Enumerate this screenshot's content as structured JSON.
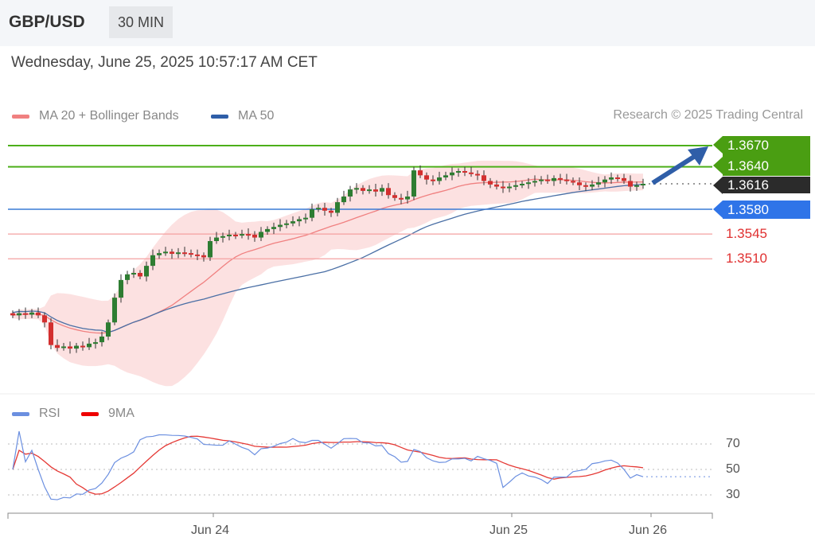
{
  "header": {
    "pair": "GBP/USD",
    "timeframe": "30 MIN"
  },
  "timestamp": "Wednesday, June 25, 2025 10:57:17 AM CET",
  "legend": {
    "ma20": "MA 20 + Bollinger Bands",
    "ma50": "MA 50",
    "rsi": "RSI",
    "ma9": "9MA"
  },
  "credit": "Research © 2025 Trading Central",
  "colors": {
    "up": "#2e7d32",
    "down": "#d32f2f",
    "ma20": "#f08080",
    "band": "#fbdada",
    "ma50": "#4a6fa5",
    "resistance": "#4caf1a",
    "support": "#3a7bd5",
    "support_red": "#f4a0a0",
    "current": "#333333",
    "rsi": "#6b8fe0",
    "ma9": "#e53935"
  },
  "levels": {
    "resistance": [
      "1.3670",
      "1.3640"
    ],
    "current": "1.3616",
    "pivot": "1.3580",
    "support": [
      "1.3545",
      "1.3510"
    ]
  },
  "chart_data": {
    "type": "candlestick",
    "closes": [
      1.343,
      1.3433,
      1.3431,
      1.3434,
      1.343,
      1.342,
      1.3388,
      1.3384,
      1.3386,
      1.3383,
      1.3387,
      1.3385,
      1.339,
      1.3392,
      1.34,
      1.342,
      1.3455,
      1.348,
      1.3488,
      1.349,
      1.3485,
      1.35,
      1.3515,
      1.3518,
      1.352,
      1.3517,
      1.3519,
      1.3518,
      1.3516,
      1.3515,
      1.3512,
      1.3535,
      1.354,
      1.3542,
      1.3544,
      1.3543,
      1.3545,
      1.3544,
      1.354,
      1.3548,
      1.3552,
      1.3555,
      1.3558,
      1.356,
      1.3563,
      1.3566,
      1.3568,
      1.358,
      1.3582,
      1.3578,
      1.3575,
      1.359,
      1.3598,
      1.3608,
      1.361,
      1.3606,
      1.3608,
      1.3605,
      1.361,
      1.36,
      1.3596,
      1.3594,
      1.3598,
      1.3635,
      1.3628,
      1.3622,
      1.362,
      1.3625,
      1.3628,
      1.3632,
      1.3634,
      1.3632,
      1.363,
      1.3628,
      1.362,
      1.3615,
      1.3612,
      1.361,
      1.3612,
      1.3614,
      1.3616,
      1.3618,
      1.362,
      1.3622,
      1.362,
      1.3624,
      1.3622,
      1.362,
      1.3618,
      1.3614,
      1.3612,
      1.3615,
      1.3618,
      1.3622,
      1.3625,
      1.3624,
      1.362,
      1.3612,
      1.3614,
      1.3616
    ],
    "ylim": [
      1.337,
      1.368
    ],
    "x_ticks": [
      "Jun 24",
      "Jun 25",
      "Jun 26"
    ],
    "rsi_ticks": [
      "70",
      "50",
      "30"
    ],
    "rsi_ylim": [
      20,
      80
    ]
  }
}
